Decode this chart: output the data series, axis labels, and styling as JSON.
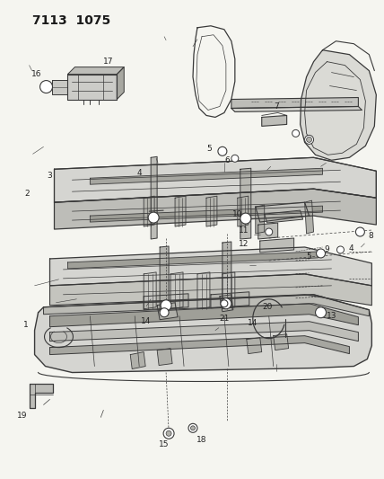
{
  "title": "7113  1075",
  "background_color": "#f5f5f0",
  "line_color": "#3a3a3a",
  "light_fill": "#c8c8c4",
  "mid_fill": "#b0b0aa",
  "dark_fill": "#888880",
  "fig_width": 4.28,
  "fig_height": 5.33,
  "dpi": 100,
  "label_fontsize": 6.5,
  "title_fontsize": 10
}
